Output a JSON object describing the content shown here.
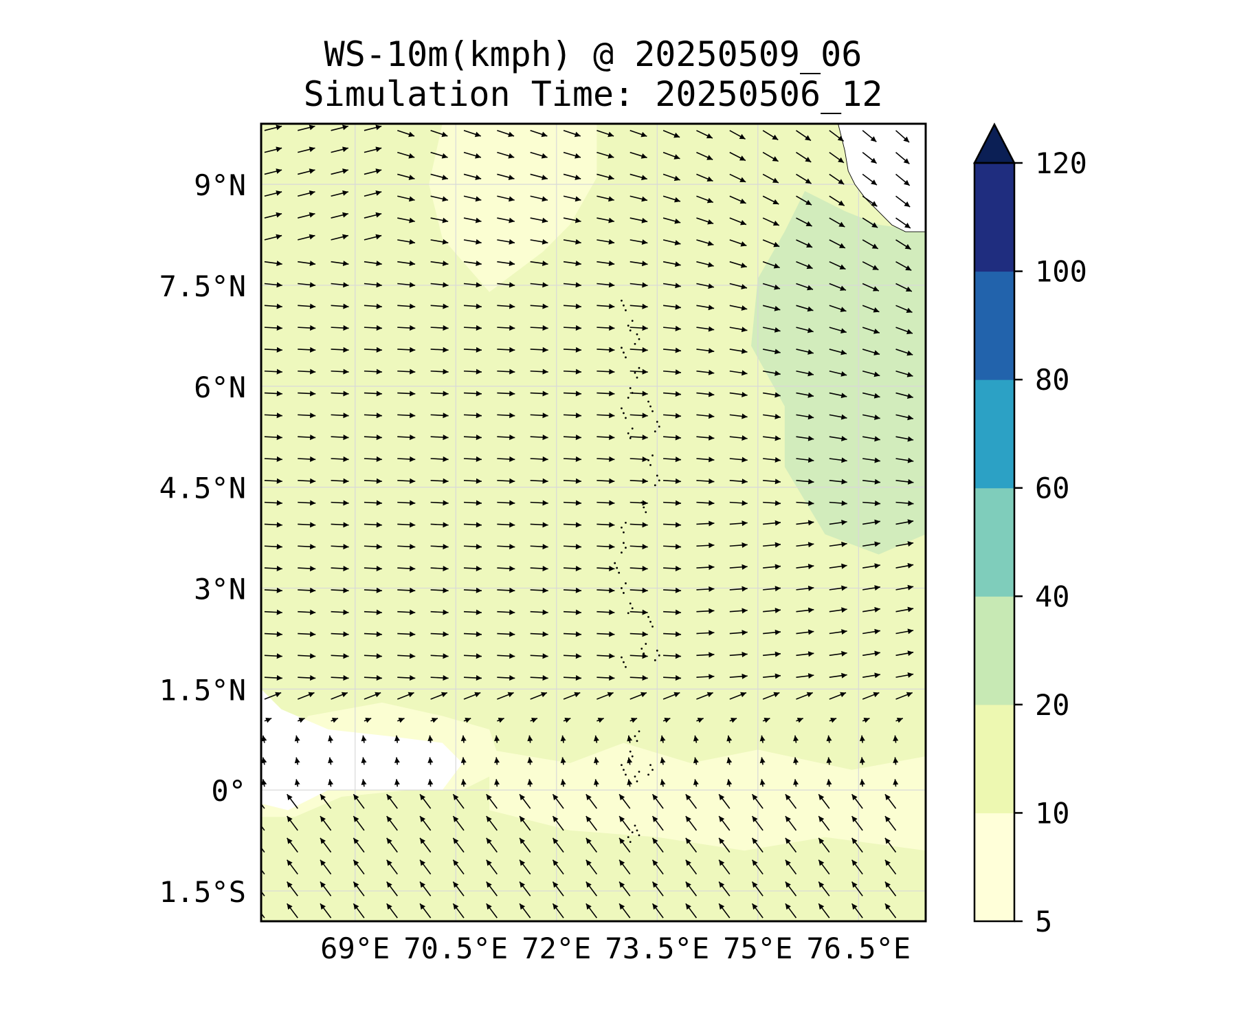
{
  "title": {
    "line1": "WS-10m(kmph) @ 20250509_06",
    "line2": "Simulation Time: 20250506_12"
  },
  "map": {
    "lon_range": [
      67.6,
      77.5
    ],
    "lat_range": [
      -1.95,
      9.9
    ],
    "lon_ticks": [
      {
        "value": 69,
        "label": "69°E"
      },
      {
        "value": 70.5,
        "label": "70.5°E"
      },
      {
        "value": 72,
        "label": "72°E"
      },
      {
        "value": 73.5,
        "label": "73.5°E"
      },
      {
        "value": 75,
        "label": "75°E"
      },
      {
        "value": 76.5,
        "label": "76.5°E"
      }
    ],
    "lat_ticks": [
      {
        "value": 9,
        "label": "9°N"
      },
      {
        "value": 7.5,
        "label": "7.5°N"
      },
      {
        "value": 6,
        "label": "6°N"
      },
      {
        "value": 4.5,
        "label": "4.5°N"
      },
      {
        "value": 3,
        "label": "3°N"
      },
      {
        "value": 1.5,
        "label": "1.5°N"
      },
      {
        "value": 0,
        "label": "0°"
      },
      {
        "value": -1.5,
        "label": "1.5°S"
      }
    ],
    "gridlines": true,
    "vector_field": "10m wind direction arrows on a regular grid",
    "features": [
      "India southwest coastline (top-right)",
      "Maldives island chain (center)"
    ]
  },
  "colorbar": {
    "levels": [
      5,
      10,
      20,
      40,
      60,
      80,
      100,
      120
    ],
    "tick_labels": [
      "5",
      "10",
      "20",
      "40",
      "60",
      "80",
      "100",
      "120"
    ],
    "colors": [
      "#ffffd9",
      "#edf8b1",
      "#c7e9b4",
      "#7fcdbb",
      "#2ca1c5",
      "#2263ac",
      "#1f2d7f"
    ],
    "extend_color": "#0b1f55",
    "extend": "max"
  },
  "colors": {
    "white_region": "#ffffff",
    "calm": "#fbfed2",
    "light": "#eef8bd",
    "moderate": "#d2ecbc",
    "frame": "#000000",
    "grid": "#d8d8d8"
  }
}
